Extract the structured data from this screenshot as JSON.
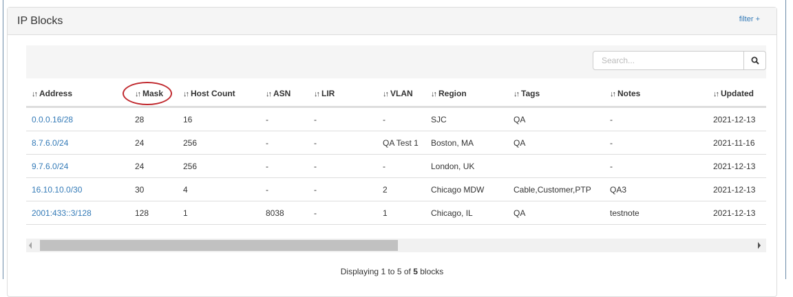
{
  "panel": {
    "title": "IP Blocks",
    "filter_label": "filter +"
  },
  "search": {
    "placeholder": "Search..."
  },
  "columns": [
    "Address",
    "Mask",
    "Host Count",
    "ASN",
    "LIR",
    "VLAN",
    "Region",
    "Tags",
    "Notes",
    "Updated"
  ],
  "sort_icon": "↓↑",
  "rows": [
    [
      "0.0.0.16/28",
      "28",
      "16",
      "-",
      "-",
      "-",
      "SJC",
      "QA",
      "-",
      "2021-12-13"
    ],
    [
      "8.7.6.0/24",
      "24",
      "256",
      "-",
      "-",
      "QA Test 1",
      "Boston, MA",
      "QA",
      "-",
      "2021-11-16"
    ],
    [
      "9.7.6.0/24",
      "24",
      "256",
      "-",
      "-",
      "-",
      "London, UK",
      "",
      "-",
      "2021-12-13"
    ],
    [
      "16.10.10.0/30",
      "30",
      "4",
      "-",
      "-",
      "2",
      "Chicago MDW",
      "Cable,Customer,PTP",
      "QA3",
      "2021-12-13"
    ],
    [
      "2001:433::3/128",
      "128",
      "1",
      "8038",
      "-",
      "1",
      "Chicago, IL",
      "QA",
      "testnote",
      "2021-12-13"
    ]
  ],
  "footer": {
    "prefix": "Displaying ",
    "from": "1",
    "to_word": " to ",
    "to": "5",
    "of_word": " of ",
    "total": "5",
    "suffix": " blocks"
  },
  "annotation_color": "#c0282d",
  "link_color": "#337ab7"
}
